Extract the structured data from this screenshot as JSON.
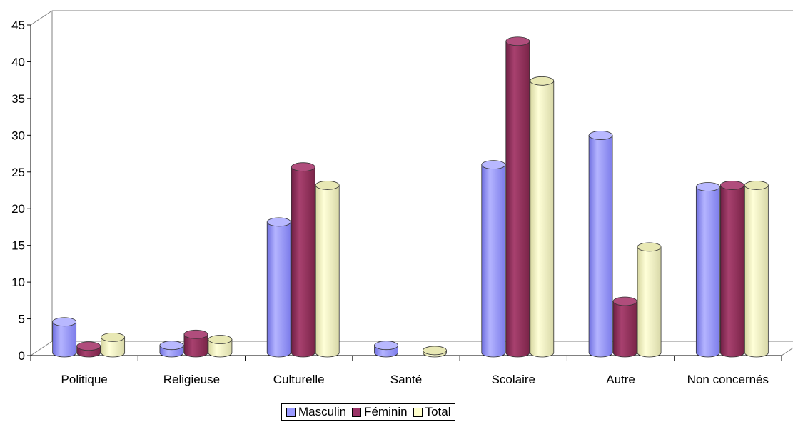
{
  "chart_data": {
    "type": "bar",
    "categories": [
      "Politique",
      "Religieuse",
      "Culturelle",
      "Santé",
      "Scolaire",
      "Autre",
      "Non concernés"
    ],
    "series": [
      {
        "name": "Masculin",
        "values": [
          4.2,
          1.0,
          17.8,
          1.0,
          25.6,
          29.6,
          22.6
        ],
        "color": "#9999ff"
      },
      {
        "name": "Féminin",
        "values": [
          0.9,
          2.5,
          25.3,
          0,
          42.4,
          7.0,
          22.8
        ],
        "color": "#993366"
      },
      {
        "name": "Total",
        "values": [
          2.1,
          1.8,
          22.8,
          0.3,
          37.0,
          14.4,
          22.8
        ],
        "color": "#ffffcc"
      }
    ],
    "ylim": [
      0,
      45
    ],
    "yticks": [
      "0",
      "5",
      "10",
      "15",
      "20",
      "25",
      "30",
      "35",
      "40",
      "45"
    ],
    "grid": false,
    "legend_position": "bottom-center"
  }
}
